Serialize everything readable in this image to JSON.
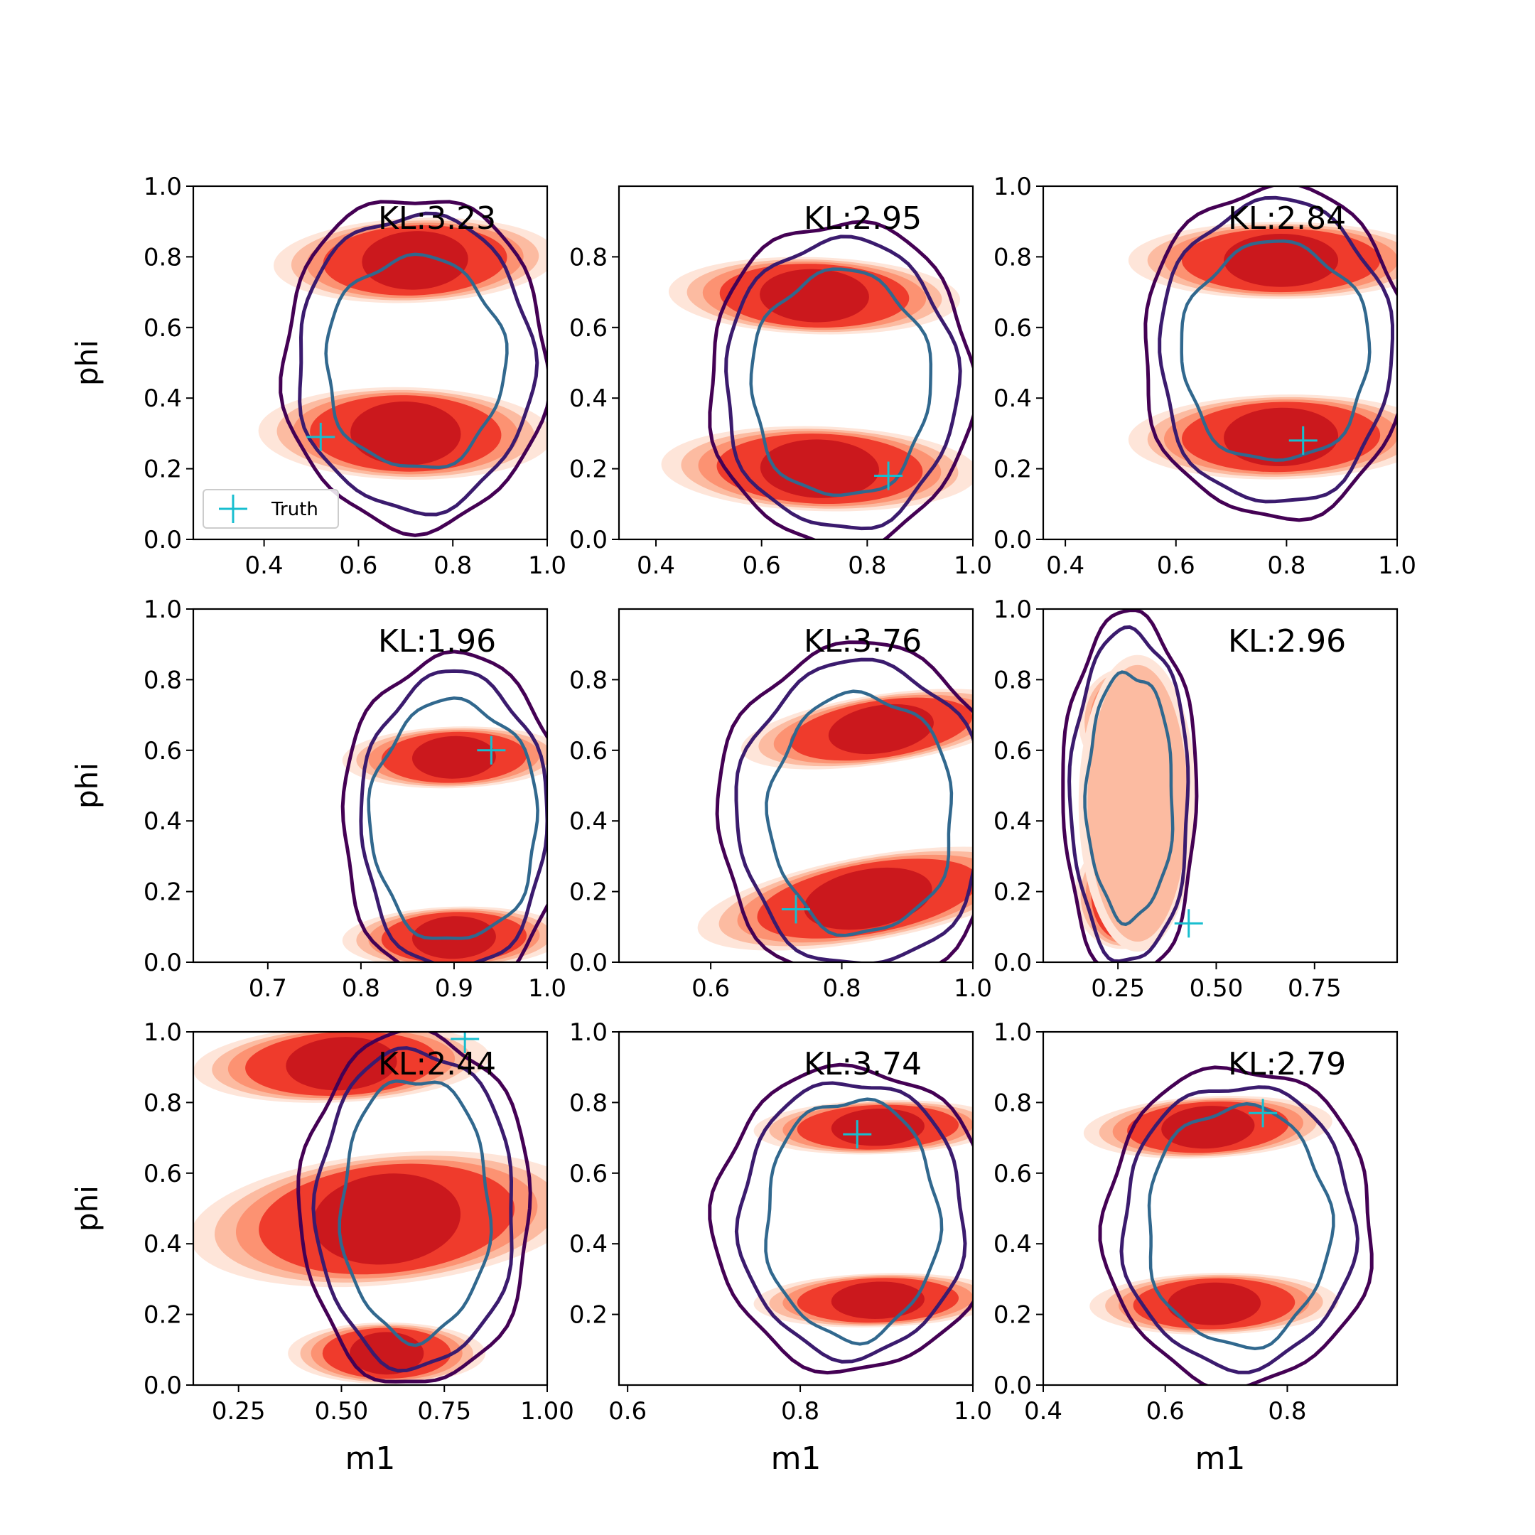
{
  "figure": {
    "colors": {
      "truth": "#17becf",
      "kde_levels": [
        "#fee5d9",
        "#fcbba1",
        "#fc9272",
        "#ef3b2c",
        "#cb181d"
      ],
      "contour_outer": "#440154",
      "contour_middle": "#3b1b6e",
      "contour_inner": "#31688e"
    },
    "legend": {
      "label": "Truth",
      "marker": "plus",
      "location": "lower left",
      "panel": 0
    }
  },
  "chart_data": [
    {
      "type": "contour",
      "annotation": "KL:3.23",
      "xlabel": "",
      "ylabel": "phi",
      "xlim": [
        0.25,
        1.0
      ],
      "ylim": [
        0.0,
        1.0
      ],
      "xticks": [
        "0.4",
        "0.6",
        "0.8",
        "1.0"
      ],
      "yticks": [
        "0.0",
        "0.2",
        "0.4",
        "0.6",
        "0.8",
        "1.0"
      ],
      "truth": {
        "x": 0.52,
        "y": 0.29
      },
      "blobs": [
        {
          "cx": 0.72,
          "cy": 0.79,
          "rx": 0.25,
          "ry": 0.11,
          "tilt": 0.04
        },
        {
          "cx": 0.7,
          "cy": 0.3,
          "rx": 0.26,
          "ry": 0.12,
          "tilt": -0.02
        }
      ],
      "contours": {
        "cx": 0.72,
        "cy": 0.5,
        "outer": [
          0.28,
          0.47
        ],
        "middle": [
          0.25,
          0.42
        ],
        "inner": [
          0.19,
          0.3
        ]
      }
    },
    {
      "type": "contour",
      "annotation": "KL:2.95",
      "xlabel": "",
      "ylabel": "",
      "xlim": [
        0.33,
        1.0
      ],
      "ylim": [
        0.0,
        1.0
      ],
      "xticks": [
        "0.4",
        "0.6",
        "0.8",
        "1.0"
      ],
      "yticks": [
        "0.0",
        "0.2",
        "0.4",
        "0.6",
        "0.8"
      ],
      "truth": {
        "x": 0.84,
        "y": 0.18
      },
      "blobs": [
        {
          "cx": 0.7,
          "cy": 0.69,
          "rx": 0.23,
          "ry": 0.1,
          "tilt": -0.03
        },
        {
          "cx": 0.71,
          "cy": 0.2,
          "rx": 0.25,
          "ry": 0.11,
          "tilt": -0.03
        }
      ],
      "contours": {
        "cx": 0.75,
        "cy": 0.44,
        "outer": [
          0.25,
          0.46
        ],
        "middle": [
          0.22,
          0.41
        ],
        "inner": [
          0.17,
          0.32
        ]
      }
    },
    {
      "type": "contour",
      "annotation": "KL:2.84",
      "xlabel": "",
      "ylabel": "",
      "xlim": [
        0.36,
        1.0
      ],
      "ylim": [
        0.0,
        1.0
      ],
      "xticks": [
        "0.4",
        "0.6",
        "0.8",
        "1.0"
      ],
      "yticks": [
        "0.0",
        "0.2",
        "0.4",
        "0.6",
        "0.8",
        "1.0"
      ],
      "truth": {
        "x": 0.83,
        "y": 0.28
      },
      "blobs": [
        {
          "cx": 0.79,
          "cy": 0.79,
          "rx": 0.23,
          "ry": 0.1,
          "tilt": 0.0
        },
        {
          "cx": 0.79,
          "cy": 0.29,
          "rx": 0.23,
          "ry": 0.11,
          "tilt": 0.02
        }
      ],
      "contours": {
        "cx": 0.78,
        "cy": 0.53,
        "outer": [
          0.24,
          0.47
        ],
        "middle": [
          0.21,
          0.43
        ],
        "inner": [
          0.17,
          0.31
        ]
      }
    },
    {
      "type": "contour",
      "annotation": "KL:1.96",
      "xlabel": "",
      "ylabel": "phi",
      "xlim": [
        0.62,
        1.0
      ],
      "ylim": [
        0.0,
        1.0
      ],
      "xticks": [
        "0.7",
        "0.8",
        "0.9",
        "1.0"
      ],
      "yticks": [
        "0.0",
        "0.2",
        "0.4",
        "0.6",
        "0.8",
        "1.0"
      ],
      "truth": {
        "x": 0.94,
        "y": 0.6
      },
      "blobs": [
        {
          "cx": 0.9,
          "cy": 0.58,
          "rx": 0.1,
          "ry": 0.08,
          "tilt": 0.03
        },
        {
          "cx": 0.9,
          "cy": 0.07,
          "rx": 0.1,
          "ry": 0.08,
          "tilt": 0.03
        }
      ],
      "contours": {
        "cx": 0.9,
        "cy": 0.4,
        "outer": [
          0.12,
          0.47
        ],
        "middle": [
          0.1,
          0.42
        ],
        "inner": [
          0.09,
          0.34
        ]
      }
    },
    {
      "type": "contour",
      "annotation": "KL:3.76",
      "xlabel": "",
      "ylabel": "",
      "xlim": [
        0.46,
        1.0
      ],
      "ylim": [
        0.0,
        1.0
      ],
      "xticks": [
        "0.6",
        "0.8",
        "1.0"
      ],
      "yticks": [
        "0.0",
        "0.2",
        "0.4",
        "0.6",
        "0.8"
      ],
      "truth": {
        "x": 0.73,
        "y": 0.15
      },
      "blobs": [
        {
          "cx": 0.86,
          "cy": 0.66,
          "rx": 0.18,
          "ry": 0.09,
          "tilt": 0.15
        },
        {
          "cx": 0.84,
          "cy": 0.18,
          "rx": 0.22,
          "ry": 0.11,
          "tilt": 0.18
        }
      ],
      "contours": {
        "cx": 0.83,
        "cy": 0.42,
        "outer": [
          0.22,
          0.48
        ],
        "middle": [
          0.19,
          0.43
        ],
        "inner": [
          0.14,
          0.34
        ]
      }
    },
    {
      "type": "contour",
      "annotation": "KL:2.96",
      "xlabel": "",
      "ylabel": "",
      "xlim": [
        0.06,
        0.96
      ],
      "ylim": [
        0.0,
        1.0
      ],
      "xticks": [
        "0.25",
        "0.50",
        "0.75"
      ],
      "yticks": [
        "0.0",
        "0.2",
        "0.4",
        "0.6",
        "0.8",
        "1.0"
      ],
      "truth": {
        "x": 0.43,
        "y": 0.11
      },
      "blobs": [
        {
          "cx": 0.27,
          "cy": 0.68,
          "rx": 0.1,
          "ry": 0.14,
          "tilt": 0.0
        },
        {
          "cx": 0.26,
          "cy": 0.19,
          "rx": 0.1,
          "ry": 0.14,
          "tilt": 0.0
        },
        {
          "cx": 0.3,
          "cy": 0.45,
          "rx": 0.15,
          "ry": 0.42,
          "tilt": 0.0,
          "faint": true
        }
      ],
      "contours": {
        "cx": 0.28,
        "cy": 0.47,
        "outer": [
          0.17,
          0.52
        ],
        "middle": [
          0.15,
          0.47
        ],
        "inner": [
          0.11,
          0.35
        ]
      }
    },
    {
      "type": "contour",
      "annotation": "KL:2.44",
      "xlabel": "m1",
      "ylabel": "phi",
      "xlim": [
        0.14,
        1.0
      ],
      "ylim": [
        0.0,
        1.0
      ],
      "xticks": [
        "0.25",
        "0.50",
        "0.75",
        "1.00"
      ],
      "yticks": [
        "0.0",
        "0.2",
        "0.4",
        "0.6",
        "0.8",
        "1.0"
      ],
      "truth": {
        "x": 0.8,
        "y": 0.98
      },
      "blobs": [
        {
          "cx": 0.5,
          "cy": 0.91,
          "rx": 0.3,
          "ry": 0.1,
          "tilt": 0.05
        },
        {
          "cx": 0.61,
          "cy": 0.47,
          "rx": 0.4,
          "ry": 0.17,
          "tilt": 0.1
        },
        {
          "cx": 0.61,
          "cy": 0.09,
          "rx": 0.2,
          "ry": 0.08,
          "tilt": 0.0
        }
      ],
      "contours": {
        "cx": 0.68,
        "cy": 0.5,
        "outer": [
          0.28,
          0.5
        ],
        "middle": [
          0.24,
          0.45
        ],
        "inner": [
          0.18,
          0.37
        ]
      }
    },
    {
      "type": "contour",
      "annotation": "KL:3.74",
      "xlabel": "m1",
      "ylabel": "",
      "xlim": [
        0.59,
        1.0
      ],
      "ylim": [
        0.0,
        1.0
      ],
      "xticks": [
        "0.6",
        "0.8",
        "1.0"
      ],
      "yticks": [
        "0.2",
        "0.4",
        "0.6",
        "0.8",
        "1.0"
      ],
      "truth": {
        "x": 0.866,
        "y": 0.71
      },
      "blobs": [
        {
          "cx": 0.89,
          "cy": 0.73,
          "rx": 0.12,
          "ry": 0.07,
          "tilt": 0.03
        },
        {
          "cx": 0.89,
          "cy": 0.24,
          "rx": 0.12,
          "ry": 0.07,
          "tilt": 0.03
        }
      ],
      "contours": {
        "cx": 0.86,
        "cy": 0.47,
        "outer": [
          0.16,
          0.43
        ],
        "middle": [
          0.13,
          0.39
        ],
        "inner": [
          0.1,
          0.34
        ]
      }
    },
    {
      "type": "contour",
      "annotation": "KL:2.79",
      "xlabel": "m1",
      "ylabel": "",
      "xlim": [
        0.4,
        0.98
      ],
      "ylim": [
        0.0,
        1.0
      ],
      "xticks": [
        "0.4",
        "0.6",
        "0.8"
      ],
      "yticks": [
        "0.0",
        "0.2",
        "0.4",
        "0.6",
        "0.8",
        "1.0"
      ],
      "truth": {
        "x": 0.76,
        "y": 0.77
      },
      "blobs": [
        {
          "cx": 0.67,
          "cy": 0.73,
          "rx": 0.17,
          "ry": 0.08,
          "tilt": 0.05
        },
        {
          "cx": 0.68,
          "cy": 0.23,
          "rx": 0.17,
          "ry": 0.08,
          "tilt": 0.02
        }
      ],
      "contours": {
        "cx": 0.72,
        "cy": 0.45,
        "outer": [
          0.22,
          0.45
        ],
        "middle": [
          0.19,
          0.4
        ],
        "inner": [
          0.15,
          0.34
        ]
      }
    }
  ]
}
